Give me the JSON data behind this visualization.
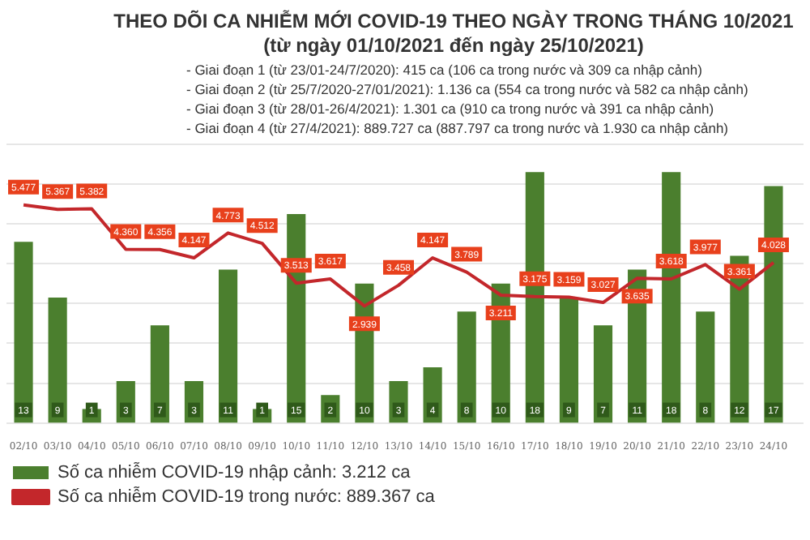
{
  "chart_data": {
    "type": "bar",
    "title": "THEO DÕI CA NHIỄM MỚI COVID-19 THEO NGÀY TRONG THÁNG 10/2021",
    "subtitle": "(từ ngày 01/10/2021 đến ngày 25/10/2021)",
    "annotations": [
      "- Giai đoạn 1 (từ 23/01-24/7/2020): 415 ca (106 ca trong nước và 309 ca nhập cảnh)",
      "- Giai đoạn 2 (từ 25/7/2020-27/01/2021): 1.136 ca (554 ca trong nước và 582 ca nhập cảnh)",
      "- Giai đoạn 3 (từ 28/01-26/4/2021): 1.301 ca (910 ca trong nước và 391 ca nhập cảnh)",
      "- Giai đoạn 4 (từ 27/4/2021): 889.727 ca (887.797 ca trong nước và 1.930 ca nhập cảnh)"
    ],
    "categories": [
      "02/10",
      "03/10",
      "04/10",
      "05/10",
      "06/10",
      "07/10",
      "08/10",
      "09/10",
      "10/10",
      "11/10",
      "12/10",
      "13/10",
      "14/10",
      "15/10",
      "16/10",
      "17/10",
      "18/10",
      "19/10",
      "20/10",
      "21/10",
      "22/10",
      "23/10",
      "24/10"
    ],
    "series": [
      {
        "name": "Số ca nhiễm COVID-19 nhập cảnh: 3.212 ca",
        "color": "#4b7f2e",
        "values": [
          13,
          9,
          1,
          3,
          7,
          3,
          11,
          1,
          15,
          2,
          10,
          3,
          4,
          8,
          10,
          18,
          9,
          7,
          11,
          18,
          8,
          12,
          17
        ]
      },
      {
        "type": "line",
        "axis": "y2",
        "name": "Số ca nhiễm COVID-19 trong nước: 889.367 ca",
        "color": "#c3272b",
        "values": [
          5477,
          5367,
          5382,
          4360,
          4356,
          4147,
          4773,
          4512,
          3513,
          3617,
          2939,
          3458,
          4147,
          3789,
          3211,
          3175,
          3159,
          3027,
          3635,
          3618,
          3977,
          3361,
          4028
        ],
        "value_labels": [
          "5.477",
          "5.367",
          "5.382",
          "4.360",
          "4.356",
          "4.147",
          "4.773",
          "4.512",
          "3.513",
          "3.617",
          "2.939",
          "3.458",
          "4.147",
          "3.789",
          "3.211",
          "3.175",
          "3.159",
          "3.027",
          "3.635",
          "3.618",
          "3.977",
          "3.361",
          "4.028"
        ]
      }
    ],
    "data_labels": true,
    "ylim": [
      0,
      20
    ],
    "y2lim": [
      0,
      7000
    ],
    "y2ticks": [
      {
        "value": 0,
        "label": null
      },
      {
        "value": 1000,
        "label": null
      },
      {
        "value": 2000,
        "label": null
      },
      {
        "value": 3000,
        "label": null
      },
      {
        "value": 4000,
        "label": null
      },
      {
        "value": 5000,
        "label": null
      },
      {
        "value": 6000,
        "label": null
      },
      {
        "value": 7000,
        "label": null
      }
    ],
    "grid": "y",
    "tick_labels": "x",
    "legend": "bottom",
    "marker": "none",
    "line_style": "solid"
  }
}
